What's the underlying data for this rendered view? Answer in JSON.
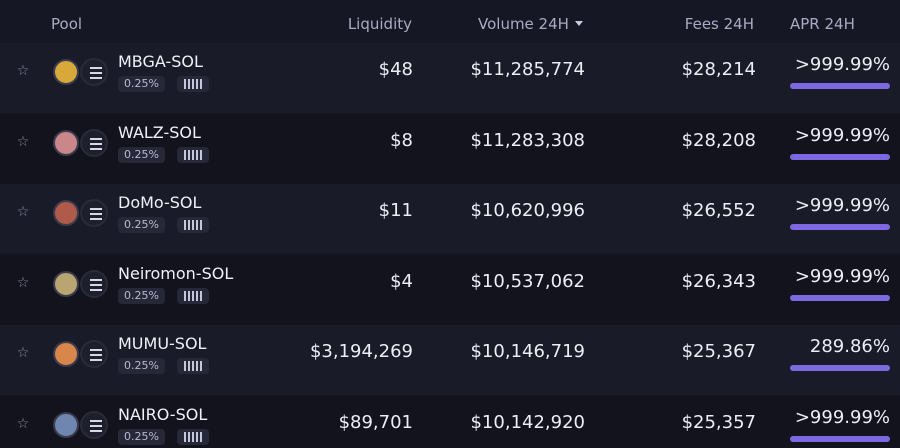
{
  "columns": {
    "pool": "Pool",
    "liquidity": "Liquidity",
    "volume": "Volume 24H",
    "fees": "Fees 24H",
    "apr": "APR 24H"
  },
  "rows": [
    {
      "pair": "MBGA-SOL",
      "fee": "0.25%",
      "liquidity": "$48",
      "volume": "$11,285,774",
      "fees": "$28,214",
      "apr": ">999.99%",
      "token_color": "#d8a93a"
    },
    {
      "pair": "WALZ-SOL",
      "fee": "0.25%",
      "liquidity": "$8",
      "volume": "$11,283,308",
      "fees": "$28,208",
      "apr": ">999.99%",
      "token_color": "#c9878a"
    },
    {
      "pair": "DoMo-SOL",
      "fee": "0.25%",
      "liquidity": "$11",
      "volume": "$10,620,996",
      "fees": "$26,552",
      "apr": ">999.99%",
      "token_color": "#b05a4a"
    },
    {
      "pair": "Neiromon-SOL",
      "fee": "0.25%",
      "liquidity": "$4",
      "volume": "$10,537,062",
      "fees": "$26,343",
      "apr": ">999.99%",
      "token_color": "#b9a572"
    },
    {
      "pair": "MUMU-SOL",
      "fee": "0.25%",
      "liquidity": "$3,194,269",
      "volume": "$10,146,719",
      "fees": "$25,367",
      "apr": "289.86%",
      "token_color": "#d9864a"
    },
    {
      "pair": "NAIRO-SOL",
      "fee": "0.25%",
      "liquidity": "$89,701",
      "volume": "$10,142,920",
      "fees": "$25,357",
      "apr": ">999.99%",
      "token_color": "#6f86b0"
    }
  ],
  "icons": {
    "star": "star-icon",
    "sol": "solana-icon",
    "bin": "bin-step-icon",
    "sort": "caret-down-icon"
  }
}
